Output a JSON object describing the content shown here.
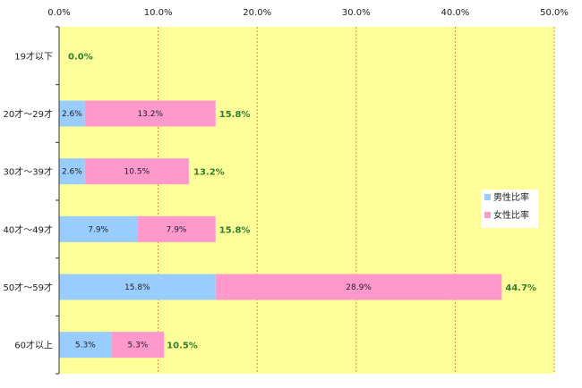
{
  "chart_data": {
    "type": "bar",
    "orientation": "horizontal",
    "stacked": true,
    "categories": [
      "19才以下",
      "20才～29才",
      "30才～39才",
      "40才～49才",
      "50才～59才",
      "60才以上"
    ],
    "series": [
      {
        "name": "男性比率",
        "color": "#99ccff",
        "values": [
          0.0,
          2.6,
          2.6,
          7.9,
          15.8,
          5.3
        ],
        "labels": [
          "",
          "2.6%",
          "2.6%",
          "7.9%",
          "15.8%",
          "5.3%"
        ]
      },
      {
        "name": "女性比率",
        "color": "#ff99cc",
        "values": [
          0.0,
          13.2,
          10.5,
          7.9,
          28.9,
          5.3
        ],
        "labels": [
          "",
          "13.2%",
          "10.5%",
          "7.9%",
          "28.9%",
          "5.3%"
        ]
      }
    ],
    "totals": [
      0.0,
      15.8,
      13.2,
      15.8,
      44.7,
      10.5
    ],
    "total_labels": [
      "0.0%",
      "15.8%",
      "13.2%",
      "15.8%",
      "44.7%",
      "10.5%"
    ],
    "xlim": [
      0,
      50
    ],
    "xticks": [
      "0.0%",
      "10.0%",
      "20.0%",
      "30.0%",
      "40.0%",
      "50.0%"
    ],
    "plot_background": "#ffff99",
    "gridline_color": "#e8823a",
    "total_label_color": "#2f7f2f",
    "legend_position": "right",
    "title": "",
    "xlabel": "",
    "ylabel": ""
  }
}
